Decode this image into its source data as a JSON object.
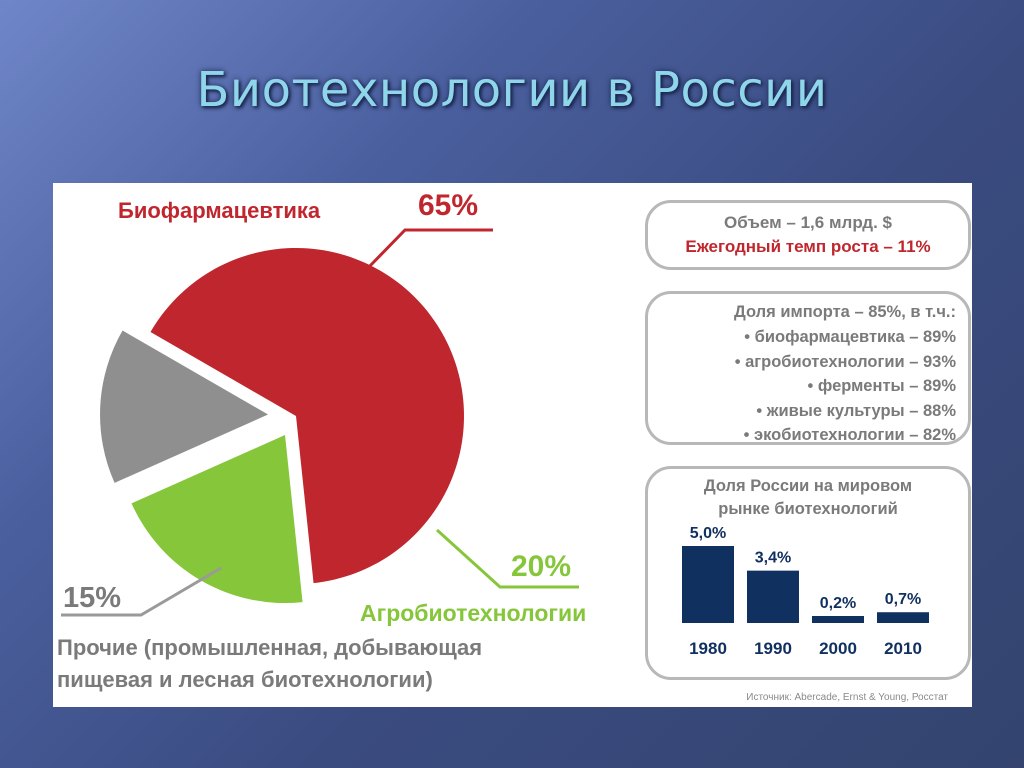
{
  "slide": {
    "title": "Биотехнологии в России"
  },
  "colors": {
    "red": "#c0262d",
    "green": "#86c63a",
    "grey": "#8f8f8f",
    "navy": "#10305f",
    "title": "#8fd6ea"
  },
  "pie": {
    "biopharma_label": "Биофармацевтика",
    "biopharma_pct": "65%",
    "agro_label": "Агробиотехнологии",
    "agro_pct": "20%",
    "other_pct": "15%",
    "other_line1": "Прочие (промышленная, добывающая",
    "other_line2": "пищевая и лесная биотехнологии)"
  },
  "volume_box": {
    "line1": "Объем – 1,6 млрд. $",
    "line2": "Ежегодный темп роста – 11%"
  },
  "import_box": {
    "title": "Доля импорта – 85%, в т.ч.:",
    "items": [
      "• биофармацевтика – 89%",
      "• агробиотехнологии – 93%",
      "• ферменты – 89%",
      "• живые культуры – 88%",
      "• экобиотехнологии – 82%"
    ]
  },
  "share_box": {
    "title_line1": "Доля России на мировом",
    "title_line2": "рынке биотехнологий"
  },
  "source": "Источник: Abercade, Ernst & Young, Росстат",
  "chart_data": [
    {
      "type": "pie",
      "categories": [
        "Биофармацевтика",
        "Агробиотехнологии",
        "Прочие (промышленная, добывающая пищевая и лесная биотехнологии)"
      ],
      "values": [
        65,
        20,
        15
      ]
    },
    {
      "type": "bar",
      "title": "Доля России на мировом рынке биотехнологий",
      "categories": [
        "1980",
        "1990",
        "2000",
        "2010"
      ],
      "values": [
        5.0,
        3.4,
        0.2,
        0.7
      ],
      "value_labels": [
        "5,0%",
        "3,4%",
        "0,2%",
        "0,7%"
      ],
      "ylim": [
        0,
        5.0
      ]
    }
  ]
}
